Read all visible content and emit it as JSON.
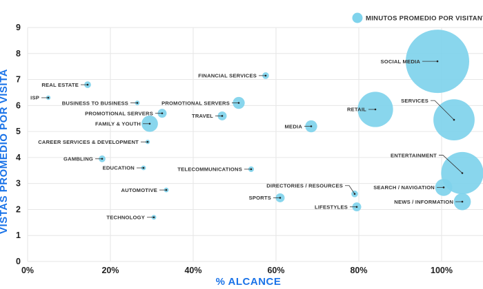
{
  "chart_data": {
    "type": "scatter",
    "xlabel": "% ALCANCE",
    "ylabel": "VISTAS PROMEDIO POR VISITA",
    "xlim": [
      0,
      1.1
    ],
    "ylim": [
      0,
      9
    ],
    "x_ticks": [
      "0%",
      "20%",
      "40%",
      "60%",
      "80%",
      "100%"
    ],
    "y_ticks": [
      "0",
      "1",
      "2",
      "3",
      "4",
      "5",
      "6",
      "7",
      "8",
      "9"
    ],
    "grid": true,
    "legend": {
      "position": "top-right",
      "entries": [
        "MINUTOS PROMEDIO POR VISITANTE"
      ]
    },
    "bubble_color": "#7fd3ec",
    "points": [
      {
        "label": "SOCIAL MEDIA",
        "x": 0.99,
        "y": 7.7,
        "size": 90
      },
      {
        "label": "FINANCIAL SERVICES",
        "x": 0.575,
        "y": 7.15,
        "size": 1
      },
      {
        "label": "REAL ESTATE",
        "x": 0.145,
        "y": 6.8,
        "size": 1
      },
      {
        "label": "ISP",
        "x": 0.05,
        "y": 6.3,
        "size": 0.3
      },
      {
        "label": "BUSINESS TO BUSINESS",
        "x": 0.265,
        "y": 6.1,
        "size": 0.5
      },
      {
        "label": "PROMOTIONAL SERVERS",
        "x": 0.51,
        "y": 6.1,
        "size": 3.2
      },
      {
        "label": "PROMOTIONAL SERVERS",
        "x": 0.325,
        "y": 5.7,
        "size": 1.8
      },
      {
        "label": "TRAVEL",
        "x": 0.47,
        "y": 5.6,
        "size": 1.8
      },
      {
        "label": "RETAIL",
        "x": 0.84,
        "y": 5.85,
        "size": 28
      },
      {
        "label": "SERVICES",
        "x": 1.03,
        "y": 5.45,
        "size": 38
      },
      {
        "label": "FAMILY & YOUTH",
        "x": 0.295,
        "y": 5.3,
        "size": 6
      },
      {
        "label": "MEDIA",
        "x": 0.685,
        "y": 5.2,
        "size": 3.2
      },
      {
        "label": "CAREER SERVICES & DEVELOPMENT",
        "x": 0.29,
        "y": 4.6,
        "size": 0.4
      },
      {
        "label": "GAMBLING",
        "x": 0.18,
        "y": 3.95,
        "size": 1
      },
      {
        "label": "EDUCATION",
        "x": 0.28,
        "y": 3.6,
        "size": 0.5
      },
      {
        "label": "TELECOMMUNICATIONS",
        "x": 0.54,
        "y": 3.55,
        "size": 0.7
      },
      {
        "label": "ENTERTAINMENT",
        "x": 1.05,
        "y": 3.4,
        "size": 40
      },
      {
        "label": "AUTOMOTIVE",
        "x": 0.335,
        "y": 2.75,
        "size": 0.5
      },
      {
        "label": "SEARCH / NAVIGATION",
        "x": 1.005,
        "y": 2.85,
        "size": 6.5
      },
      {
        "label": "DIRECTORIES / RESOURCES",
        "x": 0.79,
        "y": 2.6,
        "size": 1
      },
      {
        "label": "SPORTS",
        "x": 0.61,
        "y": 2.45,
        "size": 1.8
      },
      {
        "label": "NEWS / INFORMATION",
        "x": 1.05,
        "y": 2.3,
        "size": 6.5
      },
      {
        "label": "LIFESTYLES",
        "x": 0.795,
        "y": 2.1,
        "size": 1.8
      },
      {
        "label": "TECHNOLOGY",
        "x": 0.305,
        "y": 1.7,
        "size": 0.5
      }
    ]
  }
}
